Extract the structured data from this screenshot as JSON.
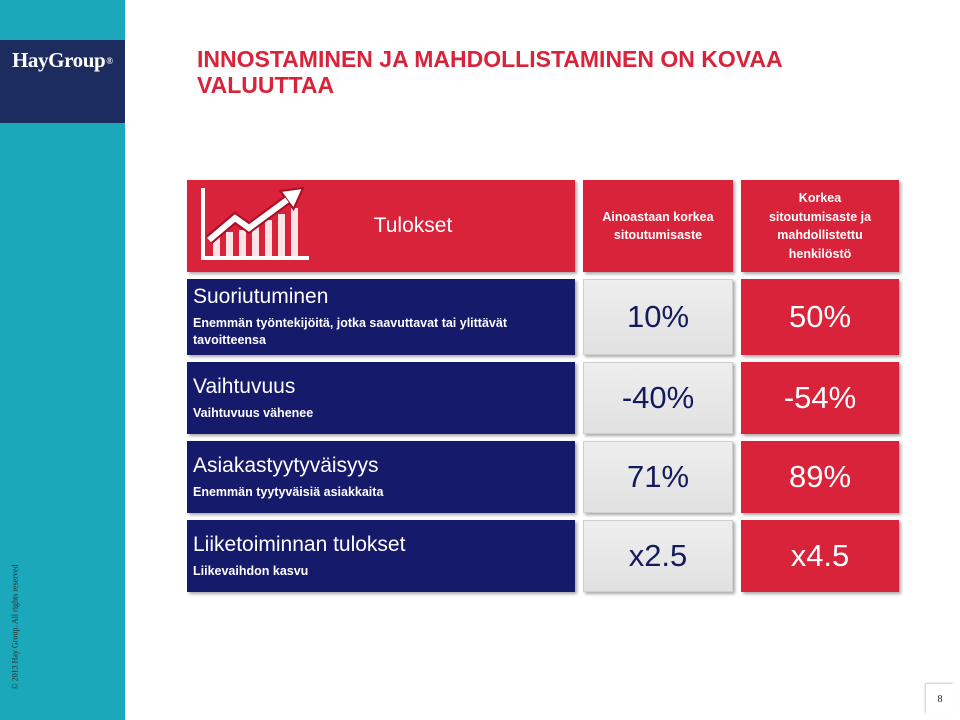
{
  "logo": {
    "text": "HayGroup",
    "registered": "®"
  },
  "copyright": "© 2013 Hay Group. All rights reserved",
  "title": "INNOSTAMINEN JA MAHDOLLISTAMINEN ON KOVAA VALUUTTAA",
  "table": {
    "header": {
      "icon": "chart-growth-icon",
      "results_label": "Tulokset",
      "col_high_engagement": "Ainoastaan korkea sitoutumisaste",
      "col_engaged_enabled": "Korkea sitoutumisaste ja mahdollistettu henkilöstö"
    },
    "rows": [
      {
        "label": "Suoriutuminen",
        "description": "Enemmän työntekijöitä, jotka saavuttavat tai ylittävät tavoitteensa",
        "high_engagement": "10%",
        "engaged_enabled": "50%"
      },
      {
        "label": "Vaihtuvuus",
        "description": "Vaihtuvuus vähenee",
        "high_engagement": "-40%",
        "engaged_enabled": "-54%"
      },
      {
        "label": "Asiakastyytyväisyys",
        "description": "Enemmän tyytyväisiä asiakkaita",
        "high_engagement": "71%",
        "engaged_enabled": "89%"
      },
      {
        "label": "Liiketoiminnan tulokset",
        "description": "Liikevaihdon kasvu",
        "high_engagement": "x2.5",
        "engaged_enabled": "x4.5"
      }
    ]
  },
  "page_number": "8",
  "colors": {
    "red": "#D8233A",
    "navy": "#161A6B",
    "teal": "#1AA8BA",
    "logo_box": "#1D2C5E",
    "gray_cell": "#E6E6E6",
    "value_text": "#141B5C"
  }
}
